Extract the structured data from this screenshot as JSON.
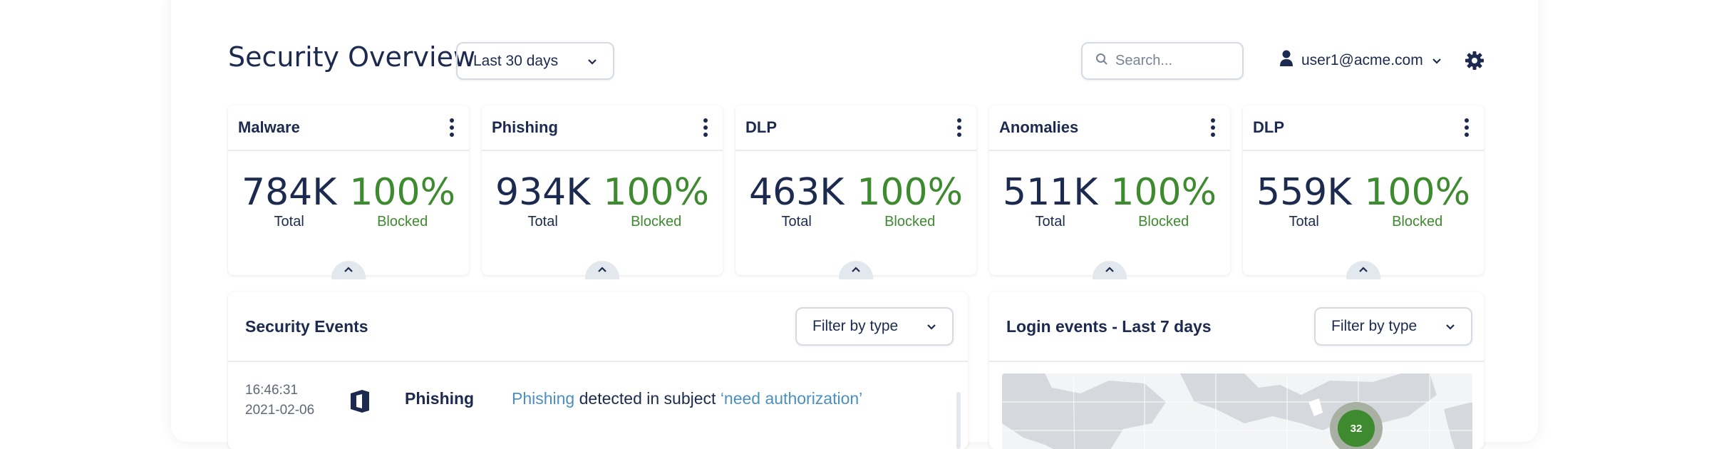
{
  "header": {
    "title": "Security Overview",
    "range_value": "Last 30 days",
    "search_placeholder": "Search...",
    "user_email": "user1@acme.com"
  },
  "cards": [
    {
      "title": "Malware",
      "total": "784K",
      "total_label": "Total",
      "blocked": "100%",
      "blocked_label": "Blocked"
    },
    {
      "title": "Phishing",
      "total": "934K",
      "total_label": "Total",
      "blocked": "100%",
      "blocked_label": "Blocked"
    },
    {
      "title": "DLP",
      "total": "463K",
      "total_label": "Total",
      "blocked": "100%",
      "blocked_label": "Blocked"
    },
    {
      "title": "Anomalies",
      "total": "511K",
      "total_label": "Total",
      "blocked": "100%",
      "blocked_label": "Blocked"
    },
    {
      "title": "DLP",
      "total": "559K",
      "total_label": "Total",
      "blocked": "100%",
      "blocked_label": "Blocked"
    }
  ],
  "events": {
    "title": "Security Events",
    "filter_label": "Filter by type",
    "rows": [
      {
        "time": "16:46:31",
        "date": "2021-02-06",
        "icon": "office-icon",
        "type": "Phishing",
        "desc_prefix": "Phishing",
        "desc_middle": " detected in subject ",
        "desc_quote": "‘need authorization’"
      }
    ]
  },
  "logins": {
    "title": "Login events - Last 7 days",
    "filter_label": "Filter by type",
    "cluster_count": "32"
  },
  "colors": {
    "text_primary": "#1b2a4e",
    "blocked_green": "#3e8a2f",
    "highlight_blue": "#4b8fc1",
    "border": "#d5dbe3"
  }
}
